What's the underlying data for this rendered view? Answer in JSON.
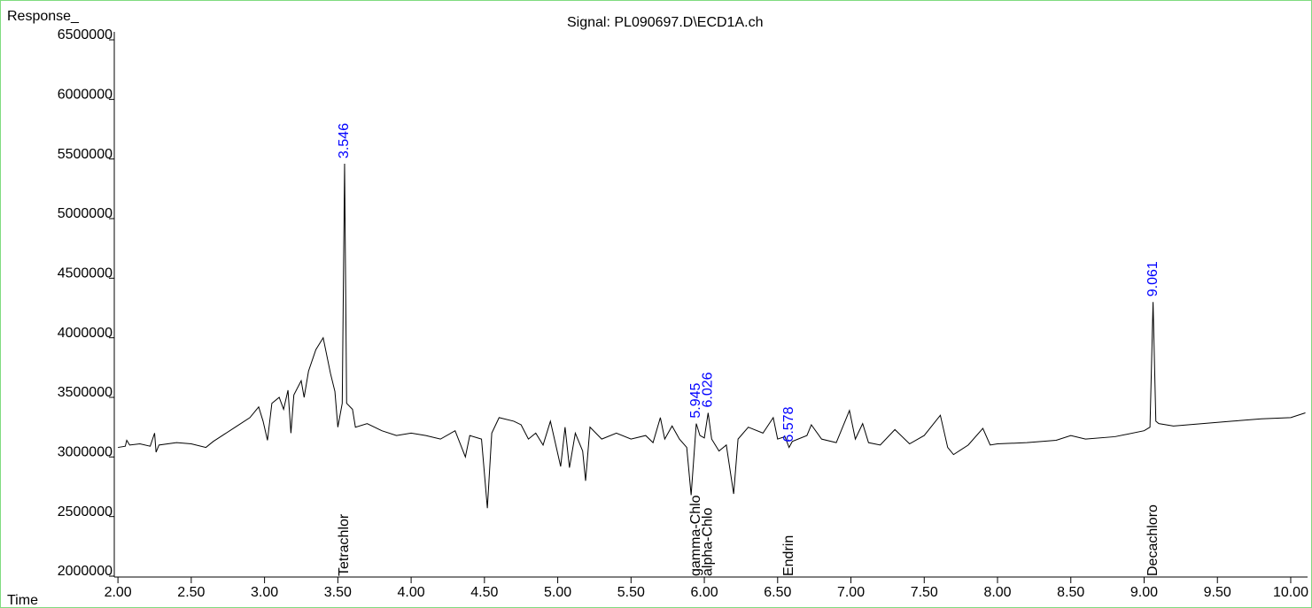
{
  "chart_data": {
    "type": "line",
    "title": "Signal: PL090697.D\\ECD1A.ch",
    "y_label": "Response_",
    "x_label": "Time",
    "color": "#000000",
    "label_color": "#0000ff",
    "xlim": [
      1.975,
      10.115
    ],
    "ylim": [
      2000000,
      6500000
    ],
    "xticks": [
      {
        "value": 2,
        "label": "2.00"
      },
      {
        "value": 2.5,
        "label": "2.50"
      },
      {
        "value": 3,
        "label": "3.00"
      },
      {
        "value": 3.5,
        "label": "3.50"
      },
      {
        "value": 4,
        "label": "4.00"
      },
      {
        "value": 4.5,
        "label": "4.50"
      },
      {
        "value": 5,
        "label": "5.00"
      },
      {
        "value": 5.5,
        "label": "5.50"
      },
      {
        "value": 6,
        "label": "6.00"
      },
      {
        "value": 6.5,
        "label": "6.50"
      },
      {
        "value": 7,
        "label": "7.00"
      },
      {
        "value": 7.5,
        "label": "7.50"
      },
      {
        "value": 8,
        "label": "8.00"
      },
      {
        "value": 8.5,
        "label": "8.50"
      },
      {
        "value": 9,
        "label": "9.00"
      },
      {
        "value": 9.5,
        "label": "9.50"
      },
      {
        "value": 10,
        "label": "10.00"
      }
    ],
    "yticks": [
      2000000,
      2500000,
      3000000,
      3500000,
      4000000,
      4500000,
      5000000,
      5500000,
      6000000,
      6500000
    ],
    "x": [
      2.0,
      2.05,
      2.06,
      2.08,
      2.15,
      2.22,
      2.25,
      2.26,
      2.28,
      2.4,
      2.5,
      2.6,
      2.65,
      2.7,
      2.8,
      2.9,
      2.96,
      2.99,
      3.02,
      3.05,
      3.1,
      3.13,
      3.16,
      3.18,
      3.2,
      3.25,
      3.27,
      3.3,
      3.35,
      3.4,
      3.42,
      3.45,
      3.48,
      3.5,
      3.53,
      3.546,
      3.56,
      3.6,
      3.62,
      3.7,
      3.8,
      3.9,
      4.0,
      4.1,
      4.2,
      4.3,
      4.37,
      4.4,
      4.48,
      4.52,
      4.55,
      4.6,
      4.7,
      4.75,
      4.8,
      4.85,
      4.9,
      4.95,
      5.02,
      5.05,
      5.08,
      5.12,
      5.17,
      5.19,
      5.22,
      5.3,
      5.4,
      5.5,
      5.6,
      5.65,
      5.7,
      5.73,
      5.78,
      5.83,
      5.88,
      5.91,
      5.945,
      5.97,
      6.0,
      6.026,
      6.05,
      6.1,
      6.15,
      6.2,
      6.23,
      6.3,
      6.4,
      6.47,
      6.5,
      6.55,
      6.578,
      6.6,
      6.7,
      6.73,
      6.8,
      6.9,
      6.99,
      7.03,
      7.08,
      7.12,
      7.2,
      7.3,
      7.4,
      7.5,
      7.61,
      7.66,
      7.7,
      7.8,
      7.9,
      7.95,
      8.0,
      8.2,
      8.4,
      8.5,
      8.6,
      8.8,
      9.0,
      9.04,
      9.061,
      9.08,
      9.1,
      9.2,
      9.4,
      9.6,
      9.8,
      10.0,
      10.1
    ],
    "values": [
      3080000,
      3090000,
      3140000,
      3100000,
      3110000,
      3090000,
      3200000,
      3040000,
      3100000,
      3120000,
      3110000,
      3080000,
      3130000,
      3170000,
      3250000,
      3330000,
      3420000,
      3300000,
      3140000,
      3450000,
      3500000,
      3400000,
      3560000,
      3200000,
      3520000,
      3640000,
      3500000,
      3720000,
      3900000,
      4000000,
      3880000,
      3700000,
      3550000,
      3250000,
      3450000,
      5460000,
      3450000,
      3400000,
      3250000,
      3280000,
      3220000,
      3180000,
      3200000,
      3180000,
      3150000,
      3220000,
      3000000,
      3180000,
      3150000,
      2570000,
      3200000,
      3330000,
      3300000,
      3270000,
      3150000,
      3200000,
      3100000,
      3300000,
      2920000,
      3250000,
      2910000,
      3200000,
      3050000,
      2800000,
      3250000,
      3150000,
      3200000,
      3150000,
      3180000,
      3120000,
      3330000,
      3150000,
      3260000,
      3150000,
      3080000,
      2680000,
      3280000,
      3180000,
      3160000,
      3370000,
      3150000,
      3050000,
      3100000,
      2690000,
      3150000,
      3250000,
      3200000,
      3330000,
      3150000,
      3170000,
      3080000,
      3130000,
      3180000,
      3270000,
      3150000,
      3120000,
      3390000,
      3150000,
      3280000,
      3120000,
      3100000,
      3230000,
      3110000,
      3180000,
      3350000,
      3080000,
      3020000,
      3100000,
      3240000,
      3100000,
      3110000,
      3120000,
      3140000,
      3180000,
      3150000,
      3170000,
      3220000,
      3250000,
      4300000,
      3300000,
      3280000,
      3260000,
      3280000,
      3300000,
      3320000,
      3330000,
      3370000
    ],
    "peaks": [
      {
        "time": 3.546,
        "compound": "Tetrachlor"
      },
      {
        "time": 5.945,
        "compound": "gamma-Chlo"
      },
      {
        "time": 6.026,
        "compound": "alpha-Chlo"
      },
      {
        "time": 6.578,
        "compound": "Endrin"
      },
      {
        "time": 9.061,
        "compound": "Decachloro"
      }
    ]
  }
}
